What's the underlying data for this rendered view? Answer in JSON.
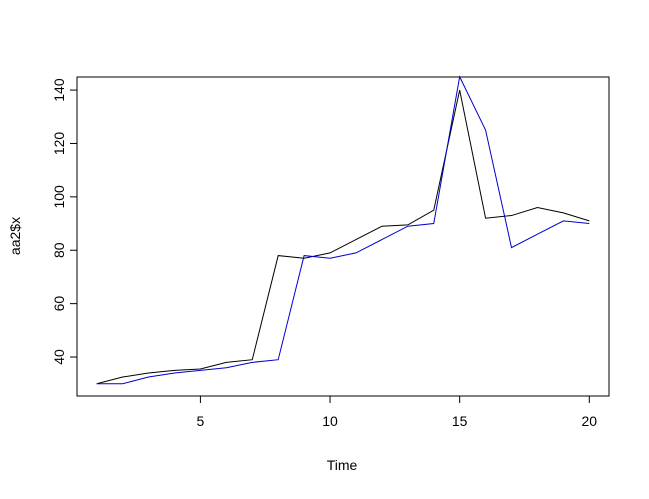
{
  "chart_data": {
    "type": "line",
    "x_label": "Time",
    "y_label": "aa2$x",
    "x": [
      1,
      2,
      3,
      4,
      5,
      6,
      7,
      8,
      9,
      10,
      11,
      12,
      13,
      14,
      15,
      16,
      17,
      18,
      19,
      20
    ],
    "series": [
      {
        "color": "#000000",
        "values": [
          30,
          32.5,
          34,
          35,
          35.5,
          38,
          39,
          78,
          77,
          79,
          84,
          89,
          89.5,
          95,
          140,
          92,
          93,
          96,
          94,
          91
        ]
      },
      {
        "color": "#0000cc",
        "values": [
          30,
          30,
          32.5,
          34,
          35,
          36,
          38,
          39,
          78,
          77,
          79,
          84,
          89,
          90,
          145,
          125,
          81,
          86,
          91,
          90
        ]
      }
    ],
    "xlim": [
      0.24,
      20.76
    ],
    "xticks": [
      5,
      10,
      15,
      20
    ],
    "ylim": [
      25.4,
      144.9
    ],
    "yticks": [
      40,
      60,
      80,
      100,
      120,
      140
    ]
  }
}
